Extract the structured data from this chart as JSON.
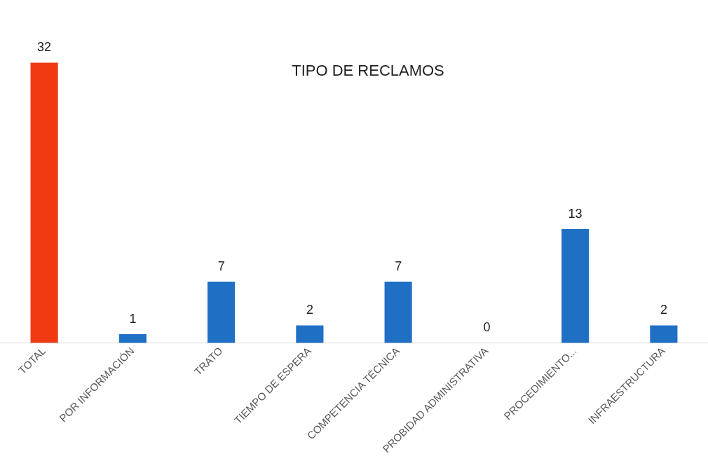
{
  "chart_data": {
    "type": "bar",
    "title": "TIPO DE RECLAMOS",
    "categories": [
      "TOTAL",
      "POR INFORMACIÓN",
      "TRATO",
      "TIEMPO DE ESPERA",
      "COMPETENCIA TÉCNICA",
      "PROBIDAD ADMINISTRATIVA",
      "PROCEDIMIENTO...",
      "INFRAESTRUCTURA"
    ],
    "values": [
      32,
      1,
      7,
      2,
      7,
      0,
      13,
      2
    ],
    "colors": [
      "#f03a12",
      "#1f6fc4",
      "#1f6fc4",
      "#1f6fc4",
      "#1f6fc4",
      "#1f6fc4",
      "#1f6fc4",
      "#1f6fc4"
    ],
    "data_labels": true,
    "grid": false,
    "legend": false
  }
}
